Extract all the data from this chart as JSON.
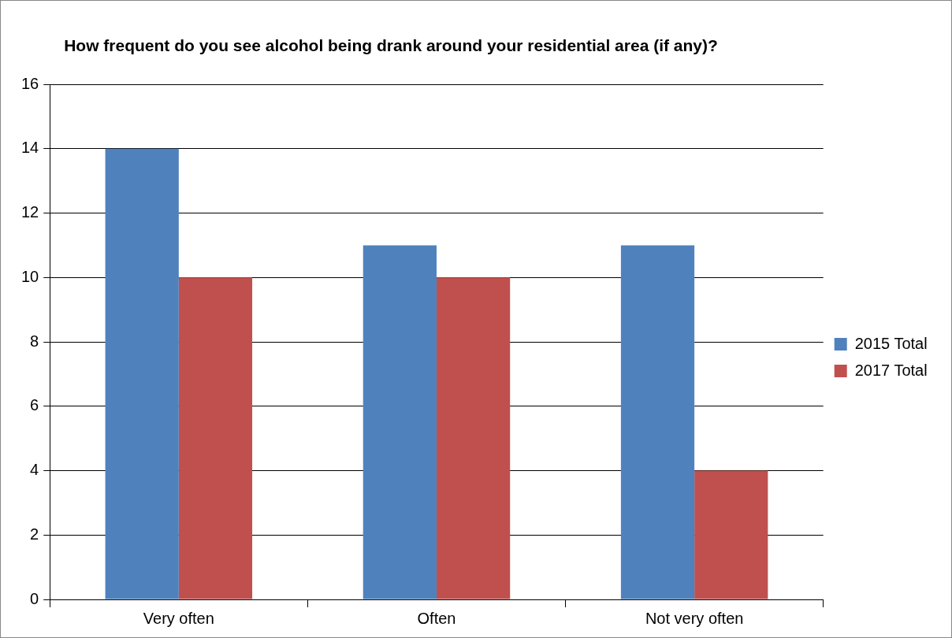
{
  "chart_data": {
    "type": "bar",
    "title": "How frequent do you see alcohol being drank around your residential area (if any)?",
    "categories": [
      "Very often",
      "Often",
      "Not very often"
    ],
    "series": [
      {
        "name": "2015 Total",
        "color": "#4f81bd",
        "values": [
          14,
          11,
          11
        ]
      },
      {
        "name": "2017 Total",
        "color": "#c0504d",
        "values": [
          10,
          10,
          4
        ]
      }
    ],
    "ylim": [
      0,
      16
    ],
    "yticks": [
      0,
      2,
      4,
      6,
      8,
      10,
      12,
      14,
      16
    ],
    "grid": "y",
    "legend": "right"
  }
}
